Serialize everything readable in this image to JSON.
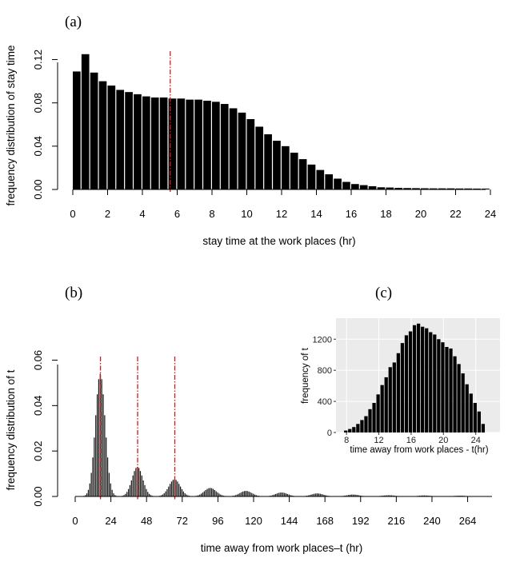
{
  "chart_data": [
    {
      "id": "a",
      "panel_label": "(a)",
      "type": "bar",
      "xlabel": "stay time at the work places (hr)",
      "ylabel": "frequency distribution of stay time",
      "xlim": [
        0,
        24
      ],
      "ylim": [
        0,
        0.13
      ],
      "xticks": [
        "0",
        "2",
        "4",
        "6",
        "8",
        "10",
        "12",
        "14",
        "16",
        "18",
        "20",
        "22",
        "24"
      ],
      "yticks": [
        "0.00",
        "0.04",
        "0.08",
        "0.12"
      ],
      "bin_width": 0.5,
      "values": [
        0.109,
        0.125,
        0.108,
        0.1,
        0.096,
        0.092,
        0.09,
        0.088,
        0.086,
        0.085,
        0.085,
        0.084,
        0.084,
        0.083,
        0.083,
        0.082,
        0.081,
        0.079,
        0.075,
        0.071,
        0.065,
        0.058,
        0.051,
        0.045,
        0.04,
        0.034,
        0.028,
        0.023,
        0.018,
        0.014,
        0.01,
        0.007,
        0.005,
        0.004,
        0.003,
        0.002,
        0.0018,
        0.0015,
        0.0013,
        0.0012,
        0.0011,
        0.001,
        0.001,
        0.001,
        0.0009,
        0.0009,
        0.0008,
        0.0008
      ],
      "vlines": [
        5.6
      ],
      "vline_color": "#d11a1a"
    },
    {
      "id": "b",
      "panel_label": "(b)",
      "type": "bar",
      "xlabel": "time away from work places–t (hr)",
      "ylabel": "frequency distribution of t",
      "xlim": [
        0,
        282
      ],
      "ylim": [
        0,
        0.063
      ],
      "xticks": [
        "0",
        "24",
        "48",
        "72",
        "96",
        "120",
        "144",
        "168",
        "192",
        "216",
        "240",
        "264"
      ],
      "yticks": [
        "0.00",
        "0.02",
        "0.04",
        "0.06"
      ],
      "bin_width": 1,
      "peaks": [
        {
          "center": 17,
          "height": 0.054,
          "sigma": 3.3
        },
        {
          "center": 42,
          "height": 0.013,
          "sigma": 3.6
        },
        {
          "center": 67,
          "height": 0.0075,
          "sigma": 3.8
        },
        {
          "center": 91,
          "height": 0.0037,
          "sigma": 4
        },
        {
          "center": 115,
          "height": 0.0024,
          "sigma": 4
        },
        {
          "center": 139,
          "height": 0.0017,
          "sigma": 4
        },
        {
          "center": 163,
          "height": 0.0013,
          "sigma": 4
        },
        {
          "center": 187,
          "height": 0.0008,
          "sigma": 4
        },
        {
          "center": 211,
          "height": 0.0005,
          "sigma": 4
        },
        {
          "center": 235,
          "height": 0.0004,
          "sigma": 4
        },
        {
          "center": 259,
          "height": 0.0003,
          "sigma": 4
        }
      ],
      "vlines": [
        17,
        42,
        67
      ],
      "vline_color": "#d11a1a"
    },
    {
      "id": "c",
      "panel_label": "(c)",
      "type": "bar",
      "xlabel": "time away from work places - t(hr)",
      "ylabel": "frequency of t",
      "xlim": [
        6.7,
        27
      ],
      "ylim": [
        0,
        1470
      ],
      "xticks": [
        "8",
        "12",
        "16",
        "20",
        "24"
      ],
      "yticks": [
        "0",
        "400",
        "800",
        "1200"
      ],
      "bin_width": 0.5,
      "x_start": 7.7,
      "values": [
        25,
        45,
        70,
        110,
        160,
        210,
        300,
        380,
        490,
        610,
        710,
        840,
        900,
        1020,
        1150,
        1250,
        1300,
        1380,
        1400,
        1360,
        1340,
        1290,
        1260,
        1200,
        1160,
        1100,
        1080,
        980,
        880,
        760,
        620,
        500,
        380,
        270,
        110
      ],
      "background": "#ebebeb",
      "grid_color": "#ffffff"
    }
  ]
}
